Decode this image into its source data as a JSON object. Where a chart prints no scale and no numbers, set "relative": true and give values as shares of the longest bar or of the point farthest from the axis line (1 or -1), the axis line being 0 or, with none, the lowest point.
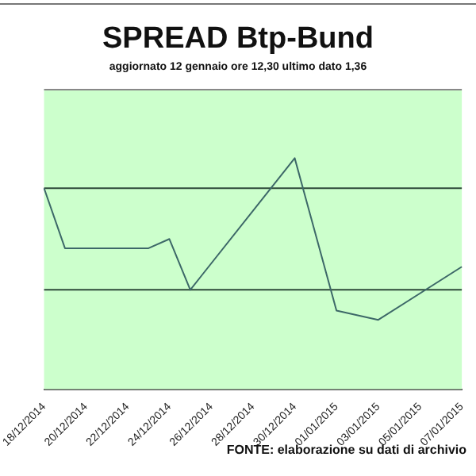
{
  "chart_data": {
    "type": "line",
    "title": "SPREAD Btp-Bund",
    "subtitle": "aggiornato 12 gennaio ore 12,30  ultimo dato  1,36",
    "categories": [
      "18/12/2014",
      null,
      "20/12/2014",
      null,
      "22/12/2014",
      null,
      "24/12/2014",
      null,
      "26/12/2014",
      null,
      "28/12/2014",
      null,
      "30/12/2014",
      null,
      "01/01/2015",
      null,
      "03/01/2015",
      null,
      "05/01/2015",
      null,
      "07/01/2015"
    ],
    "values": [
      0.87,
      0.61,
      null,
      null,
      null,
      0.61,
      0.65,
      0.43,
      null,
      null,
      null,
      null,
      1,
      null,
      0.34,
      null,
      0.3,
      null,
      null,
      null,
      0.53
    ],
    "color": "#3d6868",
    "relative": true,
    "marker": "none",
    "legend": false,
    "ref_lines": [
      {
        "axis": "y",
        "value": 0.87,
        "color": "#2e4a3a"
      },
      {
        "axis": "y",
        "value": 0.43,
        "color": "#2e4a3a"
      }
    ],
    "annotations": [
      "FONTE: elaborazione su dati di archivio"
    ]
  }
}
